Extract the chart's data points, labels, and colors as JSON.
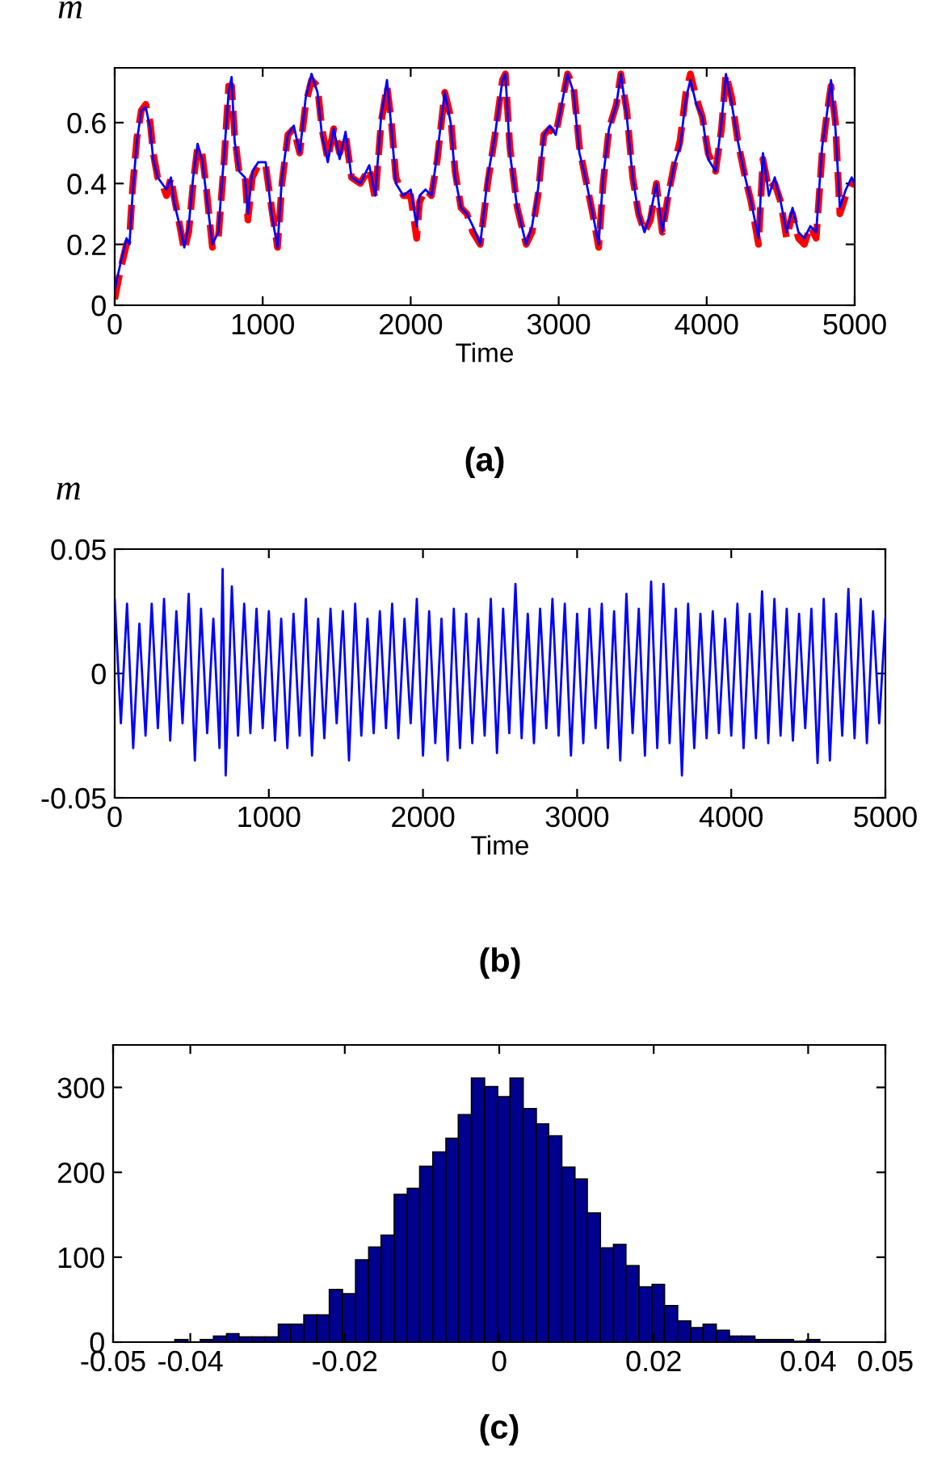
{
  "chart_data": [
    {
      "type": "line",
      "title": "(a)",
      "xlabel": "Time",
      "ylabel": "m",
      "xlim": [
        0,
        5000
      ],
      "xticks": [
        0,
        1000,
        2000,
        3000,
        4000,
        5000
      ],
      "ylim": [
        0,
        0.78
      ],
      "yticks": [
        0,
        0.2,
        0.4,
        0.6
      ],
      "grid": false,
      "legend": false,
      "x": [
        0,
        40,
        80,
        100,
        120,
        150,
        180,
        210,
        240,
        260,
        290,
        320,
        350,
        380,
        400,
        440,
        470,
        500,
        530,
        560,
        590,
        620,
        660,
        700,
        740,
        770,
        790,
        810,
        840,
        880,
        900,
        930,
        970,
        1020,
        1060,
        1100,
        1130,
        1170,
        1210,
        1250,
        1290,
        1330,
        1370,
        1400,
        1440,
        1480,
        1520,
        1560,
        1600,
        1660,
        1720,
        1760,
        1800,
        1840,
        1870,
        1900,
        1950,
        2000,
        2040,
        2060,
        2100,
        2140,
        2180,
        2230,
        2270,
        2300,
        2340,
        2380,
        2420,
        2470,
        2520,
        2570,
        2620,
        2640,
        2670,
        2720,
        2780,
        2820,
        2860,
        2900,
        2940,
        2980,
        3020,
        3060,
        3100,
        3140,
        3180,
        3230,
        3270,
        3300,
        3340,
        3390,
        3420,
        3460,
        3500,
        3540,
        3580,
        3620,
        3660,
        3700,
        3740,
        3780,
        3820,
        3860,
        3890,
        3930,
        3970,
        4010,
        4060,
        4100,
        4130,
        4170,
        4210,
        4260,
        4300,
        4350,
        4380,
        4420,
        4460,
        4500,
        4540,
        4580,
        4620,
        4660,
        4700,
        4740,
        4780,
        4810,
        4840,
        4870,
        4900,
        4940,
        4980,
        5000
      ],
      "series": [
        {
          "color": "#0000ff",
          "line_style": "solid",
          "values": [
            0.05,
            0.14,
            0.22,
            0.2,
            0.36,
            0.54,
            0.64,
            0.65,
            0.58,
            0.48,
            0.42,
            0.4,
            0.38,
            0.42,
            0.34,
            0.26,
            0.19,
            0.26,
            0.42,
            0.53,
            0.48,
            0.36,
            0.2,
            0.24,
            0.5,
            0.7,
            0.75,
            0.54,
            0.44,
            0.42,
            0.3,
            0.44,
            0.47,
            0.47,
            0.3,
            0.19,
            0.42,
            0.56,
            0.59,
            0.5,
            0.68,
            0.76,
            0.7,
            0.56,
            0.47,
            0.58,
            0.48,
            0.57,
            0.42,
            0.4,
            0.46,
            0.36,
            0.62,
            0.74,
            0.58,
            0.4,
            0.36,
            0.38,
            0.26,
            0.36,
            0.38,
            0.36,
            0.5,
            0.7,
            0.6,
            0.42,
            0.32,
            0.3,
            0.26,
            0.2,
            0.42,
            0.56,
            0.74,
            0.76,
            0.5,
            0.32,
            0.2,
            0.26,
            0.38,
            0.56,
            0.59,
            0.56,
            0.66,
            0.76,
            0.7,
            0.5,
            0.42,
            0.3,
            0.2,
            0.42,
            0.58,
            0.66,
            0.76,
            0.62,
            0.42,
            0.3,
            0.24,
            0.3,
            0.4,
            0.24,
            0.36,
            0.46,
            0.52,
            0.68,
            0.74,
            0.66,
            0.62,
            0.48,
            0.44,
            0.6,
            0.76,
            0.66,
            0.54,
            0.42,
            0.34,
            0.22,
            0.5,
            0.36,
            0.42,
            0.34,
            0.24,
            0.32,
            0.24,
            0.22,
            0.26,
            0.24,
            0.52,
            0.62,
            0.74,
            0.58,
            0.32,
            0.38,
            0.42,
            0.4
          ]
        },
        {
          "color": "#ff0000",
          "line_style": "dashed",
          "values": [
            0.02,
            0.12,
            0.2,
            0.22,
            0.38,
            0.55,
            0.64,
            0.66,
            0.6,
            0.5,
            0.42,
            0.4,
            0.36,
            0.42,
            0.36,
            0.26,
            0.18,
            0.24,
            0.4,
            0.52,
            0.5,
            0.38,
            0.19,
            0.22,
            0.48,
            0.72,
            0.72,
            0.56,
            0.44,
            0.43,
            0.28,
            0.42,
            0.46,
            0.46,
            0.32,
            0.19,
            0.4,
            0.56,
            0.58,
            0.5,
            0.66,
            0.74,
            0.72,
            0.58,
            0.48,
            0.58,
            0.5,
            0.56,
            0.42,
            0.4,
            0.45,
            0.35,
            0.6,
            0.72,
            0.6,
            0.42,
            0.36,
            0.36,
            0.22,
            0.34,
            0.38,
            0.36,
            0.48,
            0.7,
            0.62,
            0.44,
            0.32,
            0.3,
            0.24,
            0.2,
            0.4,
            0.56,
            0.74,
            0.76,
            0.52,
            0.32,
            0.2,
            0.24,
            0.36,
            0.56,
            0.58,
            0.56,
            0.66,
            0.76,
            0.72,
            0.52,
            0.42,
            0.3,
            0.19,
            0.4,
            0.58,
            0.66,
            0.76,
            0.64,
            0.42,
            0.3,
            0.24,
            0.28,
            0.4,
            0.24,
            0.36,
            0.46,
            0.54,
            0.7,
            0.76,
            0.68,
            0.62,
            0.5,
            0.44,
            0.58,
            0.76,
            0.68,
            0.54,
            0.42,
            0.34,
            0.2,
            0.48,
            0.38,
            0.4,
            0.34,
            0.22,
            0.3,
            0.22,
            0.2,
            0.26,
            0.22,
            0.5,
            0.62,
            0.72,
            0.6,
            0.3,
            0.36,
            0.4,
            0.4
          ]
        }
      ]
    },
    {
      "type": "line",
      "title": "(b)",
      "xlabel": "Time",
      "ylabel": "m",
      "xlim": [
        0,
        5000
      ],
      "xticks": [
        0,
        1000,
        2000,
        3000,
        4000,
        5000
      ],
      "ylim": [
        -0.05,
        0.05
      ],
      "yticks": [
        {
          "value": -0.05,
          "label": "-0.05"
        },
        0,
        0.05
      ],
      "grid": false,
      "legend": false,
      "x": [
        0,
        40,
        80,
        120,
        160,
        200,
        240,
        280,
        320,
        360,
        400,
        440,
        480,
        520,
        560,
        600,
        640,
        680,
        700,
        720,
        760,
        800,
        840,
        880,
        920,
        960,
        1000,
        1040,
        1080,
        1120,
        1160,
        1200,
        1240,
        1280,
        1320,
        1360,
        1400,
        1440,
        1480,
        1520,
        1560,
        1600,
        1640,
        1680,
        1720,
        1760,
        1800,
        1840,
        1880,
        1920,
        1960,
        2000,
        2040,
        2080,
        2120,
        2160,
        2200,
        2240,
        2280,
        2320,
        2360,
        2400,
        2440,
        2480,
        2520,
        2560,
        2600,
        2640,
        2680,
        2720,
        2760,
        2800,
        2840,
        2880,
        2920,
        2960,
        3000,
        3040,
        3080,
        3120,
        3160,
        3200,
        3240,
        3280,
        3320,
        3360,
        3400,
        3440,
        3480,
        3520,
        3560,
        3600,
        3640,
        3680,
        3720,
        3760,
        3800,
        3840,
        3880,
        3920,
        3960,
        4000,
        4040,
        4080,
        4120,
        4160,
        4200,
        4240,
        4280,
        4320,
        4360,
        4400,
        4440,
        4480,
        4520,
        4560,
        4600,
        4640,
        4680,
        4720,
        4760,
        4800,
        4840,
        4880,
        4920,
        4960,
        5000
      ],
      "series": [
        {
          "color": "#0000ff",
          "line_style": "solid",
          "values": [
            0.03,
            -0.02,
            0.028,
            -0.03,
            0.02,
            -0.025,
            0.028,
            -0.022,
            0.03,
            -0.027,
            0.025,
            -0.02,
            0.032,
            -0.035,
            0.026,
            -0.024,
            0.022,
            -0.03,
            0.042,
            -0.041,
            0.035,
            -0.025,
            0.028,
            -0.024,
            0.026,
            -0.022,
            0.025,
            -0.027,
            0.022,
            -0.03,
            0.024,
            -0.025,
            0.03,
            -0.033,
            0.022,
            -0.026,
            0.026,
            -0.02,
            0.025,
            -0.035,
            0.028,
            -0.025,
            0.022,
            -0.024,
            0.025,
            -0.022,
            0.028,
            -0.026,
            0.022,
            -0.02,
            0.03,
            -0.033,
            0.025,
            -0.028,
            0.022,
            -0.035,
            0.026,
            -0.03,
            0.024,
            -0.028,
            0.022,
            -0.025,
            0.03,
            -0.032,
            0.026,
            -0.024,
            0.036,
            -0.026,
            0.024,
            -0.028,
            0.026,
            -0.022,
            0.03,
            -0.025,
            0.028,
            -0.033,
            0.024,
            -0.028,
            0.026,
            -0.022,
            0.028,
            -0.03,
            0.025,
            -0.035,
            0.032,
            -0.024,
            0.026,
            -0.033,
            0.037,
            -0.03,
            0.036,
            -0.028,
            0.026,
            -0.041,
            0.028,
            -0.03,
            0.024,
            -0.026,
            0.025,
            -0.024,
            0.022,
            -0.025,
            0.028,
            -0.03,
            0.024,
            -0.026,
            0.033,
            -0.028,
            0.03,
            -0.025,
            0.026,
            -0.027,
            0.024,
            -0.022,
            0.026,
            -0.036,
            0.03,
            -0.035,
            0.024,
            -0.025,
            0.034,
            -0.026,
            0.03,
            -0.028,
            0.025,
            -0.02,
            0.022
          ]
        }
      ]
    },
    {
      "type": "histogram",
      "title": "(c)",
      "color": "#00008f",
      "xlim": [
        -0.05,
        0.05
      ],
      "xticks": [
        -0.05,
        -0.04,
        -0.02,
        0,
        0.02,
        0.04,
        0.05
      ],
      "ylim": [
        0,
        350
      ],
      "yticks": [
        0,
        100,
        200,
        300
      ],
      "grid": false,
      "bins": [
        -0.042,
        -0.0403,
        -0.0387,
        -0.037,
        -0.0353,
        -0.0337,
        -0.032,
        -0.0303,
        -0.0286,
        -0.027,
        -0.0253,
        -0.0236,
        -0.022,
        -0.0203,
        -0.0186,
        -0.0169,
        -0.0153,
        -0.0136,
        -0.0119,
        -0.0103,
        -0.0086,
        -0.0069,
        -0.0053,
        -0.0036,
        -0.0019,
        -0.0002,
        0.0014,
        0.0031,
        0.0048,
        0.0064,
        0.0081,
        0.0098,
        0.0114,
        0.0131,
        0.0148,
        0.0164,
        0.0181,
        0.0198,
        0.0214,
        0.0231,
        0.0248,
        0.0264,
        0.0281,
        0.0298,
        0.0314,
        0.0331,
        0.0348,
        0.0364,
        0.0381,
        0.0398,
        0.0415
      ],
      "values": [
        3,
        null,
        3,
        7,
        10,
        6,
        6,
        6,
        21,
        21,
        32,
        32,
        62,
        57,
        97,
        112,
        126,
        174,
        181,
        207,
        224,
        240,
        268,
        311,
        301,
        289,
        311,
        275,
        257,
        243,
        206,
        192,
        152,
        111,
        115,
        90,
        65,
        68,
        43,
        25,
        17,
        21,
        14,
        7,
        7,
        3,
        3,
        3,
        1,
        3
      ]
    }
  ]
}
